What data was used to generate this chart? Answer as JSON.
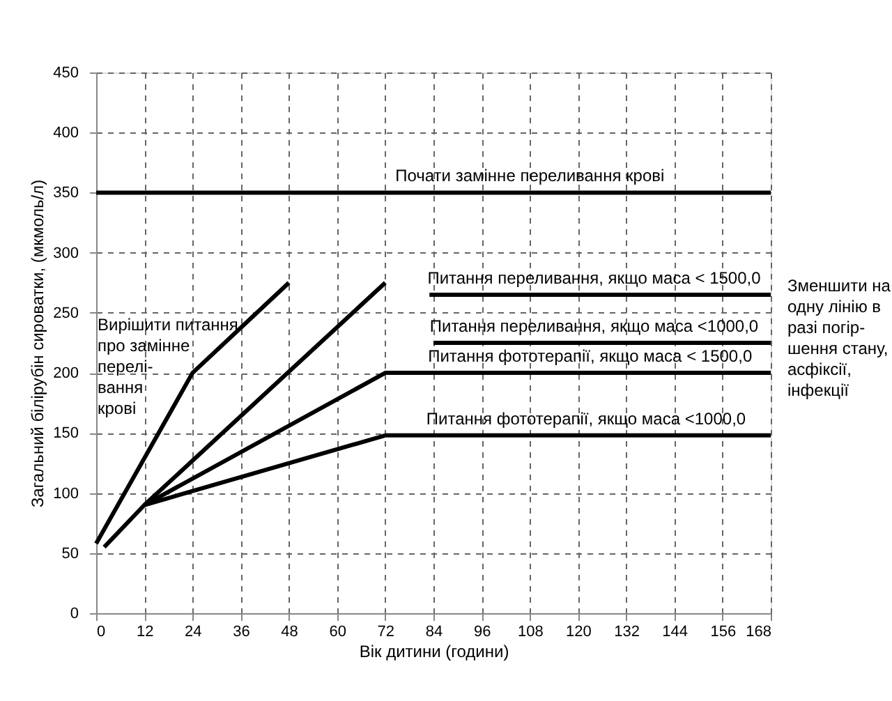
{
  "chart_data": {
    "type": "line",
    "xlabel": "Вік дитини (години)",
    "ylabel": "Загальний білірубін сироватки, (мкмоль/л)",
    "xlim": [
      0,
      168
    ],
    "xticks": [
      0,
      12,
      24,
      36,
      48,
      60,
      72,
      84,
      96,
      108,
      120,
      132,
      144,
      156,
      168
    ],
    "ylim": [
      0,
      450
    ],
    "yticks": [
      0,
      50,
      100,
      150,
      200,
      250,
      300,
      350,
      400,
      450
    ],
    "grid": true,
    "legend": false,
    "marker": "none",
    "line_style": "solid",
    "series": [
      {
        "color": "#000000",
        "x": [
          0,
          168
        ],
        "values": [
          350,
          350
        ]
      },
      {
        "color": "#000000",
        "x": [
          0,
          24,
          48
        ],
        "values": [
          58,
          200,
          275
        ]
      },
      {
        "color": "#000000",
        "x": [
          2,
          12,
          72
        ],
        "values": [
          55,
          90,
          275
        ]
      },
      {
        "color": "#000000",
        "x": [
          12,
          72,
          168
        ],
        "values": [
          90,
          200,
          200
        ]
      },
      {
        "color": "#000000",
        "x": [
          12,
          72,
          168
        ],
        "values": [
          90,
          148,
          148
        ]
      },
      {
        "color": "#000000",
        "x": [
          83,
          168
        ],
        "values": [
          265,
          265
        ]
      },
      {
        "color": "#000000",
        "x": [
          84,
          168
        ],
        "values": [
          225,
          225
        ]
      }
    ],
    "annotations": [
      {
        "text": "Почати замінне переливання крові",
        "x": 108,
        "y": 350
      },
      "Вирішити питання\nпро замінне\nперелі-\nвання\nкрові",
      {
        "text": "Питання переливання, якщо маса < 1500,0",
        "x": 124,
        "y": 265
      },
      {
        "text": "Питання переливання, якщо маса <1000,0",
        "x": 124,
        "y": 225
      },
      {
        "text": "Питання фототерапії, якщо маса < 1500,0",
        "x": 123,
        "y": 200
      },
      {
        "text": "Питання фототерапії, якщо маса <1000,0",
        "x": 122,
        "y": 148
      },
      "Зменшити на\nодну лінію в\nразі погір-\nшення стану,\nасфіксії,\nінфекції"
    ]
  }
}
